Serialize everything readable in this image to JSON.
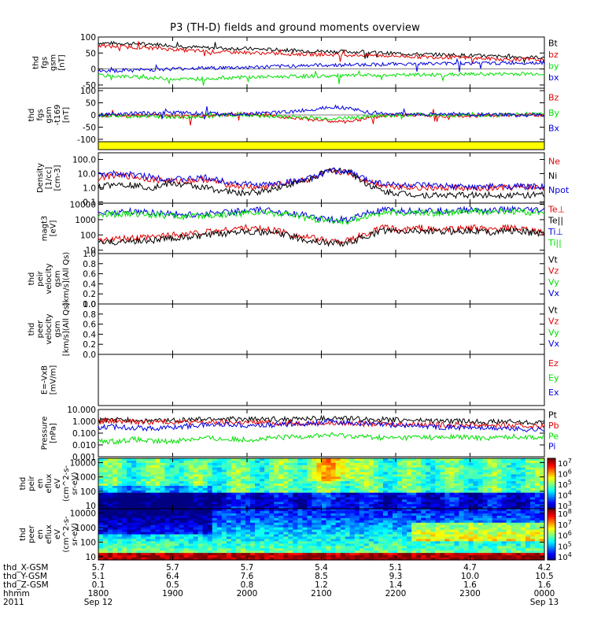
{
  "title": "P3 (TH-D) fields and ground moments overview",
  "colors": {
    "black": "#000000",
    "red": "#e00000",
    "green": "#00e000",
    "blue": "#0000e0",
    "yellow": "#ffff00"
  },
  "chart_data": [
    {
      "id": "fgs",
      "type": "line",
      "ylabel_lines": [
        "thd",
        "fgs",
        "gsm",
        "[nT]"
      ],
      "ylim": [
        -60,
        100
      ],
      "ticks": [
        "100",
        "50",
        "0",
        "-50"
      ],
      "series": [
        {
          "name": "Bt",
          "color": "black",
          "values": [
            82,
            80,
            79,
            78,
            74,
            70,
            66,
            65,
            64,
            62,
            60,
            58,
            56,
            55,
            54,
            52,
            50,
            48,
            46,
            45,
            44,
            42,
            40,
            38,
            37,
            36
          ]
        },
        {
          "name": "bz",
          "color": "red",
          "values": [
            72,
            70,
            68,
            66,
            62,
            58,
            55,
            53,
            52,
            50,
            48,
            47,
            46,
            45,
            44,
            43,
            42,
            40,
            38,
            37,
            36,
            34,
            32,
            30,
            30,
            28
          ]
        },
        {
          "name": "by",
          "color": "green",
          "values": [
            -20,
            -22,
            -25,
            -28,
            -30,
            -32,
            -30,
            -28,
            -26,
            -25,
            -24,
            -23,
            -22,
            -22,
            -21,
            -20,
            -20,
            -19,
            -18,
            -18,
            -17,
            -16,
            -16,
            -15,
            -15,
            -14
          ]
        },
        {
          "name": "bx",
          "color": "blue",
          "values": [
            -8,
            -5,
            -3,
            -2,
            0,
            2,
            3,
            4,
            5,
            6,
            8,
            10,
            12,
            12,
            13,
            14,
            15,
            16,
            16,
            17,
            18,
            18,
            18,
            19,
            20,
            20
          ]
        }
      ]
    },
    {
      "id": "fgs169",
      "type": "line",
      "ylabel_lines": [
        "thd",
        "fgs",
        "gsm",
        "-t169",
        "[nT]"
      ],
      "ylim": [
        -110,
        110
      ],
      "ticks": [
        "100",
        "50",
        "0",
        "-50",
        "-100"
      ],
      "series": [
        {
          "name": "Bz",
          "color": "red",
          "values": [
            0,
            -2,
            -3,
            -1,
            -5,
            -8,
            -3,
            2,
            4,
            -2,
            -6,
            -10,
            -18,
            -25,
            -30,
            -12,
            -4,
            0,
            2,
            -2,
            -4,
            -3,
            -2,
            0,
            2,
            -2
          ]
        },
        {
          "name": "By",
          "color": "green",
          "values": [
            -2,
            -4,
            -6,
            -5,
            -8,
            -10,
            -6,
            -2,
            0,
            -3,
            -6,
            -8,
            -12,
            -15,
            -12,
            -6,
            -2,
            0,
            2,
            0,
            -2,
            -1,
            0,
            2,
            4,
            6
          ]
        },
        {
          "name": "Bx",
          "color": "blue",
          "values": [
            2,
            4,
            6,
            8,
            10,
            8,
            6,
            4,
            3,
            6,
            10,
            15,
            22,
            35,
            28,
            12,
            6,
            4,
            2,
            3,
            4,
            2,
            1,
            0,
            -1,
            0
          ]
        }
      ]
    },
    {
      "id": "yellow-bar",
      "type": "area"
    },
    {
      "id": "density",
      "type": "line",
      "ylabel_lines": [
        "Density",
        "[1/cc]",
        "[cm-3]"
      ],
      "scale": "log",
      "ylim": [
        0.08,
        300
      ],
      "ticks": [
        "100.0",
        "10.0",
        "1.0",
        "0.1"
      ],
      "series": [
        {
          "name": "Ne",
          "color": "red",
          "values": [
            5,
            8,
            6,
            4,
            3,
            3,
            4,
            2,
            1.2,
            1,
            1.5,
            3,
            4,
            15,
            12,
            3,
            1.5,
            1.2,
            1,
            0.9,
            1,
            0.8,
            0.9,
            1,
            1.1,
            1
          ]
        },
        {
          "name": "Ni",
          "color": "black",
          "values": [
            1,
            2,
            1.5,
            1,
            2,
            1.5,
            1,
            0.6,
            0.4,
            0.5,
            1,
            2,
            5,
            18,
            15,
            2,
            0.5,
            0.4,
            0.3,
            0.3,
            0.3,
            0.3,
            0.3,
            0.3,
            0.3,
            0.3
          ]
        },
        {
          "name": "Npot",
          "color": "blue",
          "values": [
            8,
            10,
            8,
            6,
            4,
            4,
            5,
            3,
            2,
            1.5,
            2,
            3,
            5,
            16,
            14,
            4,
            2,
            1.5,
            1.5,
            1.3,
            1.2,
            1.1,
            1.2,
            1.3,
            1.2,
            1.2
          ]
        }
      ]
    },
    {
      "id": "temperature",
      "type": "line",
      "ylabel_lines": [
        "magt3",
        "[eV]"
      ],
      "scale": "log",
      "ylim": [
        6,
        12000
      ],
      "ticks": [
        "10000",
        "1000",
        "100",
        "10"
      ],
      "series": [
        {
          "name": "Te⊥",
          "color": "red",
          "values": [
            40,
            50,
            60,
            70,
            100,
            120,
            150,
            200,
            300,
            250,
            200,
            100,
            60,
            40,
            40,
            120,
            300,
            200,
            300,
            200,
            250,
            300,
            200,
            300,
            200,
            150
          ]
        },
        {
          "name": "Te||",
          "color": "black",
          "values": [
            30,
            35,
            40,
            45,
            60,
            70,
            90,
            120,
            200,
            150,
            130,
            70,
            40,
            30,
            30,
            80,
            200,
            150,
            200,
            150,
            180,
            200,
            150,
            200,
            150,
            120
          ]
        },
        {
          "name": "Ti⊥",
          "color": "blue",
          "values": [
            3000,
            3000,
            3500,
            3000,
            2500,
            2000,
            2500,
            3000,
            3500,
            4000,
            3500,
            2500,
            1500,
            1000,
            1000,
            2500,
            4000,
            3500,
            4000,
            3500,
            4000,
            4500,
            4000,
            4500,
            4000,
            4000
          ]
        },
        {
          "name": "Ti||",
          "color": "green",
          "values": [
            2000,
            2200,
            2500,
            2200,
            1800,
            1500,
            1800,
            2200,
            2600,
            3000,
            2600,
            1800,
            1100,
            800,
            800,
            1800,
            3000,
            2600,
            3000,
            2600,
            3000,
            3500,
            3000,
            3500,
            3000,
            3000
          ]
        }
      ]
    },
    {
      "id": "peir-velocity",
      "type": "line",
      "ylabel_lines": [
        "thd",
        "peir",
        "velocity",
        "gsm",
        "[km/s](All Qs)"
      ],
      "ylim": [
        0,
        1
      ],
      "ticks": [
        "1.0",
        "0.8",
        "0.6",
        "0.4",
        "0.2",
        "0.0"
      ],
      "legend": [
        "Vt",
        "Vz",
        "Vy",
        "Vx"
      ],
      "series": []
    },
    {
      "id": "peer-velocity",
      "type": "line",
      "ylabel_lines": [
        "thd",
        "peer",
        "velocity",
        "gsm",
        "[km/s](All Qs)"
      ],
      "ylim": [
        0,
        1
      ],
      "ticks": [
        "1.0",
        "0.8",
        "0.6",
        "0.4",
        "0.2",
        "0.0"
      ],
      "legend": [
        "Vt",
        "Vz",
        "Vy",
        "Vx"
      ],
      "series": []
    },
    {
      "id": "e-field",
      "type": "line",
      "ylabel_lines": [
        "E=-VxB",
        "[mV/m]"
      ],
      "legend": [
        "Ez",
        "Ey",
        "Ex"
      ],
      "series": []
    },
    {
      "id": "pressure",
      "type": "line",
      "ylabel_lines": [
        "Pressure",
        "[nPa]"
      ],
      "scale": "log",
      "ylim": [
        0.001,
        10
      ],
      "ticks": [
        "10.000",
        "1.000",
        "0.100",
        "0.010",
        "0.001"
      ],
      "series": [
        {
          "name": "Pt",
          "color": "black",
          "values": [
            1.2,
            1.3,
            1.2,
            1.1,
            1.2,
            1.3,
            1.5,
            1.6,
            1.5,
            1.4,
            1.5,
            1.6,
            1.7,
            1.8,
            1.7,
            1.5,
            1.4,
            1.3,
            1.2,
            1.1,
            1.0,
            1.0,
            0.9,
            0.9,
            0.8,
            0.8
          ]
        },
        {
          "name": "Pb",
          "color": "red",
          "values": [
            1.0,
            1.0,
            0.9,
            0.9,
            0.9,
            0.9,
            0.8,
            0.8,
            0.8,
            0.8,
            0.7,
            0.7,
            0.7,
            0.7,
            0.7,
            0.6,
            0.6,
            0.6,
            0.6,
            0.5,
            0.5,
            0.5,
            0.5,
            0.4,
            0.4,
            0.4
          ]
        },
        {
          "name": "Pe",
          "color": "green",
          "values": [
            0.02,
            0.02,
            0.03,
            0.02,
            0.02,
            0.03,
            0.04,
            0.03,
            0.03,
            0.03,
            0.04,
            0.05,
            0.06,
            0.07,
            0.06,
            0.05,
            0.04,
            0.04,
            0.05,
            0.04,
            0.05,
            0.04,
            0.04,
            0.05,
            0.05,
            0.04
          ]
        },
        {
          "name": "Pi",
          "color": "blue",
          "values": [
            0.3,
            0.35,
            0.3,
            0.25,
            0.3,
            0.4,
            0.5,
            0.6,
            0.5,
            0.45,
            0.5,
            0.6,
            0.7,
            0.9,
            0.8,
            0.6,
            0.5,
            0.45,
            0.4,
            0.35,
            0.3,
            0.3,
            0.25,
            0.25,
            0.2,
            0.2
          ]
        }
      ]
    },
    {
      "id": "peir-eflux",
      "type": "heatmap",
      "ylabel_lines": [
        "thd",
        "peir",
        "en",
        "eflux",
        "eV",
        "(cm^2-s-",
        "sr-eV)"
      ],
      "scale": "log",
      "ylim": [
        6,
        20000
      ],
      "ticks": [
        "10000",
        "1000",
        "100",
        "10"
      ],
      "colorbar_ticks": [
        "10^7",
        "10^6",
        "10^5",
        "10^4",
        "10^3"
      ]
    },
    {
      "id": "peer-eflux",
      "type": "heatmap",
      "ylabel_lines": [
        "thd",
        "peer",
        "en",
        "eflux",
        "eV",
        "(cm^2-s-",
        "sr-eV)"
      ],
      "scale": "log",
      "ylim": [
        6,
        20000
      ],
      "ticks": [
        "10000",
        "1000",
        "100",
        "10"
      ],
      "colorbar_ticks": [
        "10^8",
        "10^7",
        "10^6",
        "10^5",
        "10^4"
      ]
    }
  ],
  "xaxis": {
    "row_labels": [
      "thd_X-GSM",
      "thd_Y-GSM",
      "thd_Z-GSM",
      "hhmm",
      "2011"
    ],
    "columns": [
      {
        "x": "5.7",
        "y": "5.1",
        "z": "0.1",
        "hhmm": "1800",
        "date": "Sep 12"
      },
      {
        "x": "5.7",
        "y": "6.4",
        "z": "0.5",
        "hhmm": "1900",
        "date": ""
      },
      {
        "x": "5.7",
        "y": "7.6",
        "z": "0.8",
        "hhmm": "2000",
        "date": ""
      },
      {
        "x": "5.4",
        "y": "8.5",
        "z": "1.2",
        "hhmm": "2100",
        "date": ""
      },
      {
        "x": "5.1",
        "y": "9.3",
        "z": "1.4",
        "hhmm": "2200",
        "date": ""
      },
      {
        "x": "4.7",
        "y": "10.0",
        "z": "1.6",
        "hhmm": "2300",
        "date": ""
      },
      {
        "x": "4.2",
        "y": "10.5",
        "z": "1.6",
        "hhmm": "0000",
        "date": "Sep 13"
      }
    ]
  }
}
